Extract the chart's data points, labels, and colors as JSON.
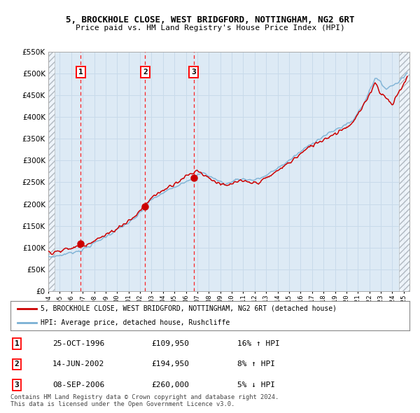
{
  "title": "5, BROCKHOLE CLOSE, WEST BRIDGFORD, NOTTINGHAM, NG2 6RT",
  "subtitle": "Price paid vs. HM Land Registry's House Price Index (HPI)",
  "ylim": [
    0,
    550000
  ],
  "ytick_vals": [
    0,
    50000,
    100000,
    150000,
    200000,
    250000,
    300000,
    350000,
    400000,
    450000,
    500000,
    550000
  ],
  "xmin": 1994.0,
  "xmax": 2025.5,
  "sale_dates": [
    1996.82,
    2002.45,
    2006.69
  ],
  "sale_prices": [
    109950,
    194950,
    260000
  ],
  "sale_labels": [
    "1",
    "2",
    "3"
  ],
  "sale_info": [
    {
      "label": "1",
      "date": "25-OCT-1996",
      "price": "£109,950",
      "hpi": "16% ↑ HPI"
    },
    {
      "label": "2",
      "date": "14-JUN-2002",
      "price": "£194,950",
      "hpi": "8% ↑ HPI"
    },
    {
      "label": "3",
      "date": "08-SEP-2006",
      "price": "£260,000",
      "hpi": "5% ↓ HPI"
    }
  ],
  "legend_house_label": "5, BROCKHOLE CLOSE, WEST BRIDGFORD, NOTTINGHAM, NG2 6RT (detached house)",
  "legend_hpi_label": "HPI: Average price, detached house, Rushcliffe",
  "footer": "Contains HM Land Registry data © Crown copyright and database right 2024.\nThis data is licensed under the Open Government Licence v3.0.",
  "red_line_color": "#cc0000",
  "blue_line_color": "#7ab0d4",
  "grid_color": "#c8daea",
  "background_color": "#ddeaf5"
}
